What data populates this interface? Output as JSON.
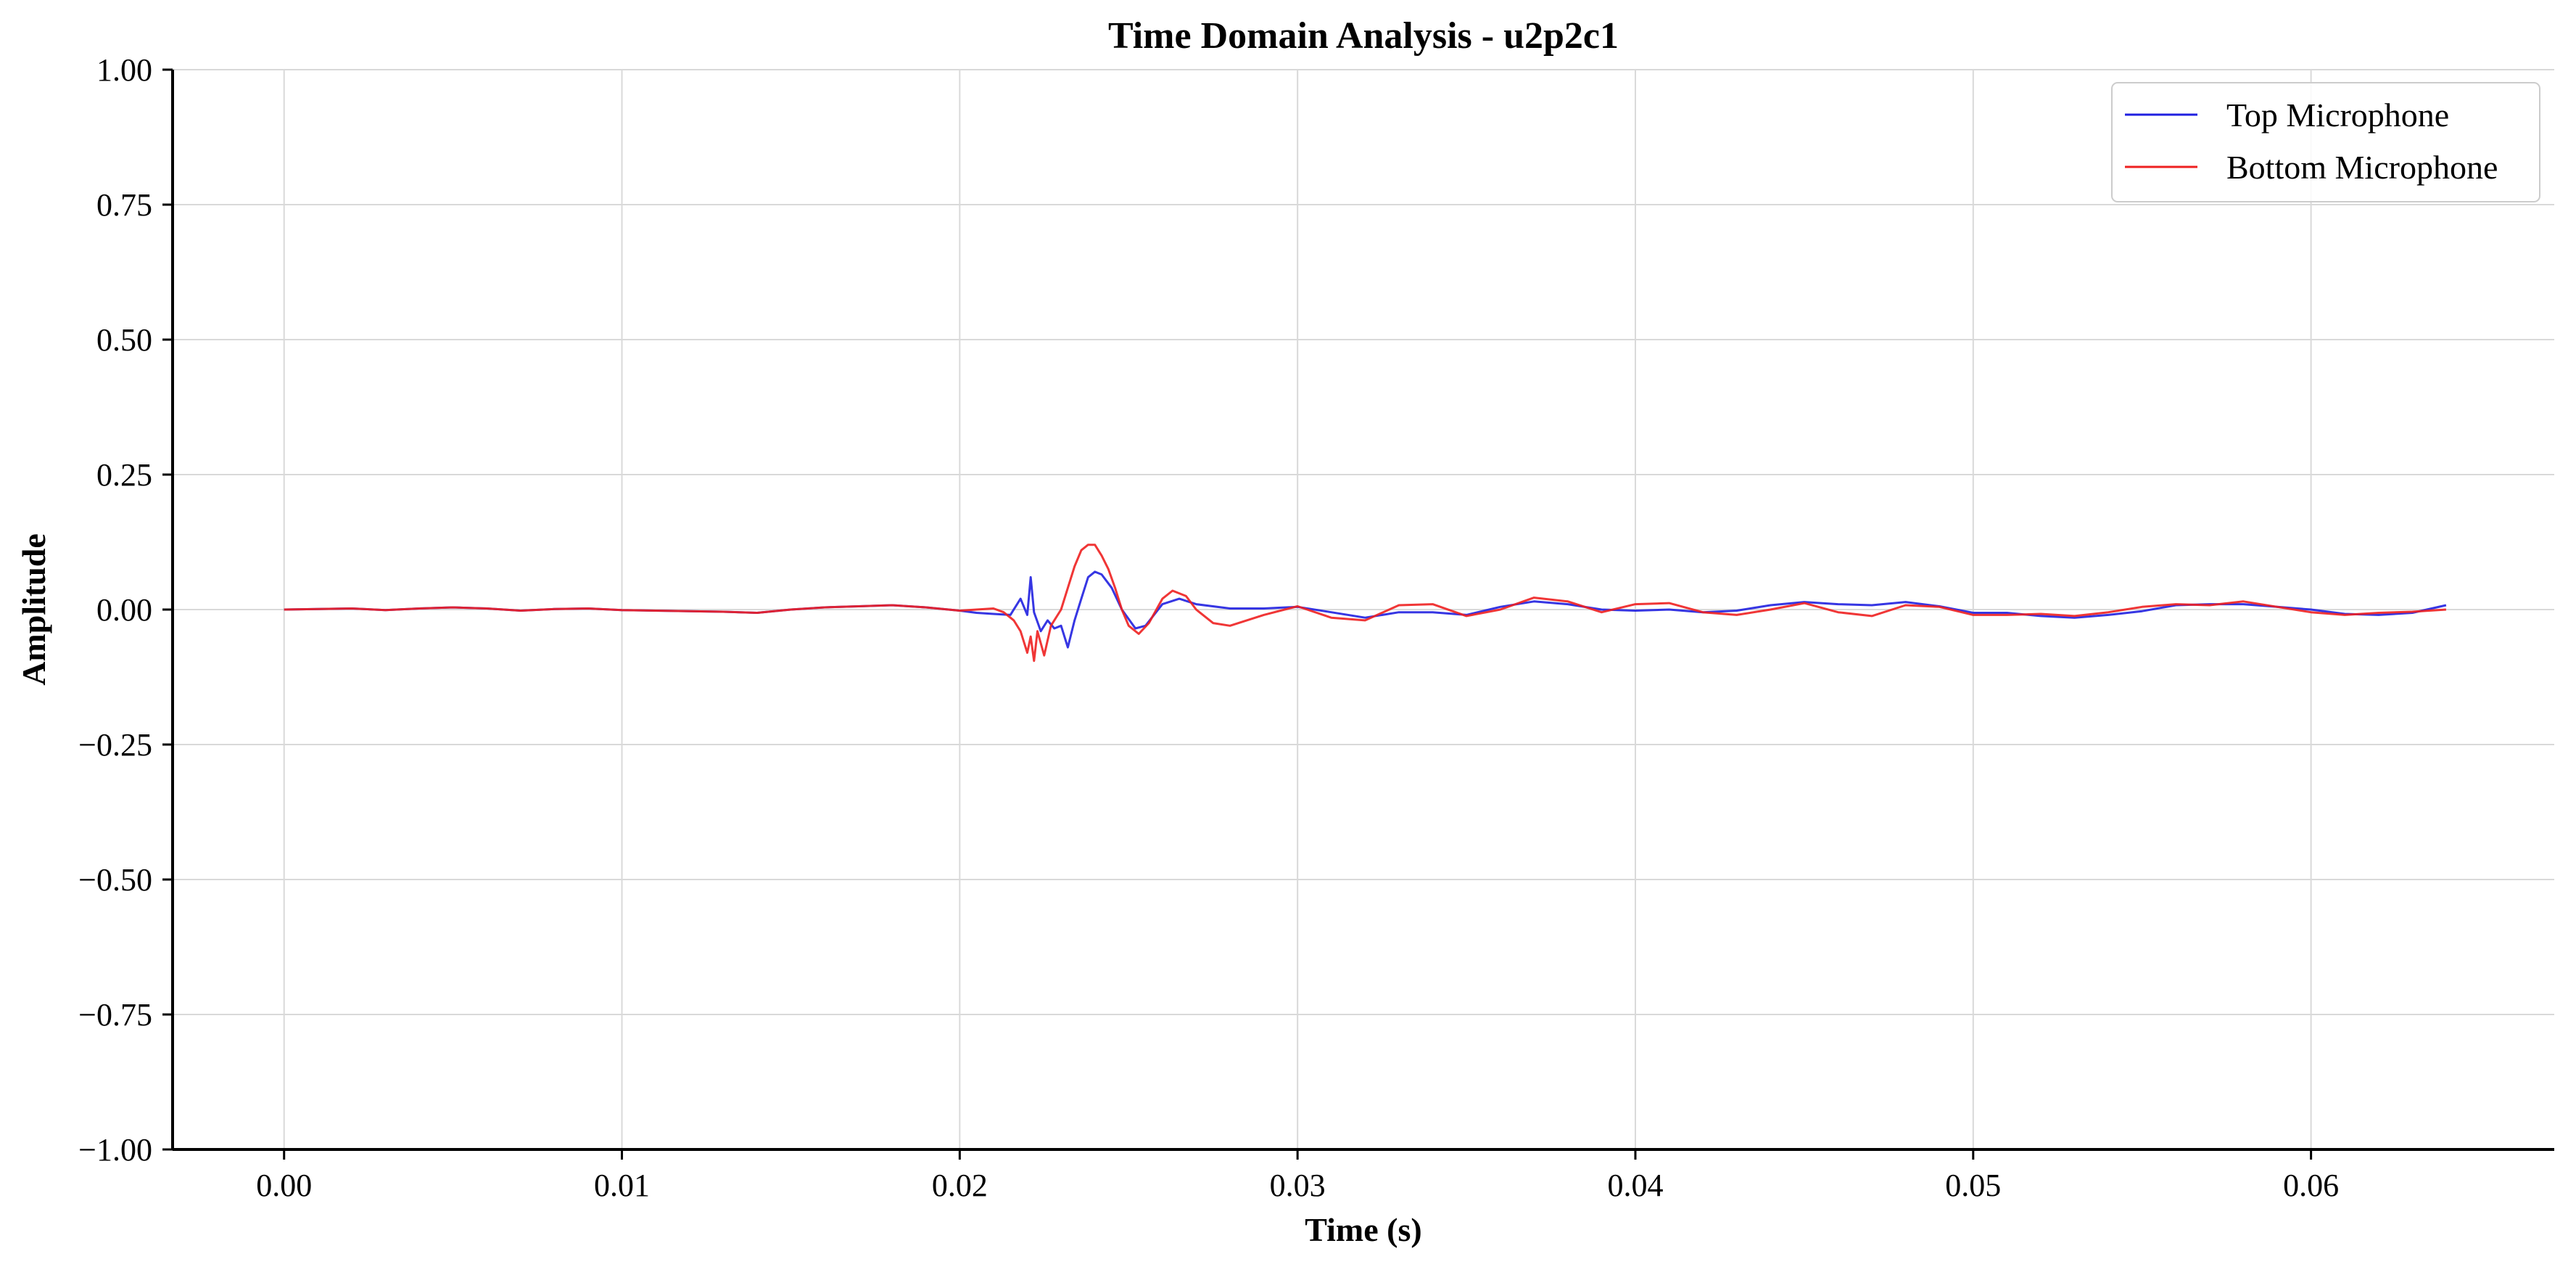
{
  "chart_data": {
    "type": "line",
    "title": "Time Domain Analysis - u2p2c1",
    "xlabel": "Time (s)",
    "ylabel": "Amplitude",
    "xlim": [
      -0.0033,
      0.0672
    ],
    "ylim": [
      -1.0,
      1.0
    ],
    "xticks": [
      0.0,
      0.01,
      0.02,
      0.03,
      0.04,
      0.05,
      0.06
    ],
    "xtick_labels": [
      "0.00",
      "0.01",
      "0.02",
      "0.03",
      "0.04",
      "0.05",
      "0.06"
    ],
    "yticks": [
      1.0,
      0.75,
      0.5,
      0.25,
      0.0,
      -0.25,
      -0.5,
      -0.75,
      -1.0
    ],
    "ytick_labels": [
      "1.00",
      "0.75",
      "0.50",
      "0.25",
      "0.00",
      "−0.25",
      "−0.50",
      "−0.75",
      "−1.00"
    ],
    "grid": true,
    "legend_position": "top-right",
    "series": [
      {
        "name": "Top Microphone",
        "color": "#2020e0",
        "points": [
          [
            0.0,
            0.0
          ],
          [
            0.001,
            0.001
          ],
          [
            0.002,
            0.002
          ],
          [
            0.003,
            -0.001
          ],
          [
            0.004,
            0.002
          ],
          [
            0.005,
            0.004
          ],
          [
            0.006,
            0.002
          ],
          [
            0.007,
            -0.002
          ],
          [
            0.008,
            0.001
          ],
          [
            0.009,
            0.002
          ],
          [
            0.01,
            -0.001
          ],
          [
            0.011,
            -0.002
          ],
          [
            0.012,
            -0.003
          ],
          [
            0.013,
            -0.004
          ],
          [
            0.014,
            -0.006
          ],
          [
            0.015,
            0.0
          ],
          [
            0.016,
            0.004
          ],
          [
            0.017,
            0.006
          ],
          [
            0.018,
            0.008
          ],
          [
            0.019,
            0.004
          ],
          [
            0.02,
            -0.002
          ],
          [
            0.0205,
            -0.006
          ],
          [
            0.021,
            -0.008
          ],
          [
            0.0215,
            -0.01
          ],
          [
            0.0218,
            0.02
          ],
          [
            0.022,
            -0.01
          ],
          [
            0.0221,
            0.06
          ],
          [
            0.0222,
            -0.005
          ],
          [
            0.0224,
            -0.04
          ],
          [
            0.0226,
            -0.02
          ],
          [
            0.0228,
            -0.035
          ],
          [
            0.023,
            -0.03
          ],
          [
            0.0232,
            -0.07
          ],
          [
            0.0234,
            -0.02
          ],
          [
            0.0236,
            0.02
          ],
          [
            0.0238,
            0.06
          ],
          [
            0.024,
            0.07
          ],
          [
            0.0242,
            0.065
          ],
          [
            0.0245,
            0.04
          ],
          [
            0.0248,
            0.0
          ],
          [
            0.0252,
            -0.035
          ],
          [
            0.0255,
            -0.03
          ],
          [
            0.026,
            0.01
          ],
          [
            0.0265,
            0.02
          ],
          [
            0.027,
            0.01
          ],
          [
            0.028,
            0.002
          ],
          [
            0.029,
            0.002
          ],
          [
            0.03,
            0.005
          ],
          [
            0.031,
            -0.005
          ],
          [
            0.032,
            -0.015
          ],
          [
            0.033,
            -0.005
          ],
          [
            0.034,
            -0.005
          ],
          [
            0.035,
            -0.01
          ],
          [
            0.036,
            0.005
          ],
          [
            0.037,
            0.015
          ],
          [
            0.038,
            0.01
          ],
          [
            0.039,
            0.0
          ],
          [
            0.04,
            -0.002
          ],
          [
            0.041,
            0.0
          ],
          [
            0.042,
            -0.005
          ],
          [
            0.043,
            -0.002
          ],
          [
            0.044,
            0.008
          ],
          [
            0.045,
            0.014
          ],
          [
            0.046,
            0.01
          ],
          [
            0.047,
            0.008
          ],
          [
            0.048,
            0.014
          ],
          [
            0.049,
            0.006
          ],
          [
            0.05,
            -0.006
          ],
          [
            0.051,
            -0.006
          ],
          [
            0.052,
            -0.012
          ],
          [
            0.053,
            -0.015
          ],
          [
            0.054,
            -0.01
          ],
          [
            0.055,
            -0.003
          ],
          [
            0.056,
            0.008
          ],
          [
            0.057,
            0.01
          ],
          [
            0.058,
            0.01
          ],
          [
            0.059,
            0.005
          ],
          [
            0.06,
            0.0
          ],
          [
            0.061,
            -0.008
          ],
          [
            0.062,
            -0.01
          ],
          [
            0.063,
            -0.006
          ],
          [
            0.064,
            0.008
          ]
        ]
      },
      {
        "name": "Bottom Microphone",
        "color": "#ee2020",
        "points": [
          [
            0.0,
            0.0
          ],
          [
            0.001,
            0.001
          ],
          [
            0.002,
            0.002
          ],
          [
            0.003,
            -0.001
          ],
          [
            0.004,
            0.002
          ],
          [
            0.005,
            0.004
          ],
          [
            0.006,
            0.002
          ],
          [
            0.007,
            -0.002
          ],
          [
            0.008,
            0.001
          ],
          [
            0.009,
            0.002
          ],
          [
            0.01,
            -0.001
          ],
          [
            0.011,
            -0.002
          ],
          [
            0.012,
            -0.003
          ],
          [
            0.013,
            -0.004
          ],
          [
            0.014,
            -0.006
          ],
          [
            0.015,
            0.0
          ],
          [
            0.016,
            0.004
          ],
          [
            0.017,
            0.006
          ],
          [
            0.018,
            0.008
          ],
          [
            0.019,
            0.004
          ],
          [
            0.02,
            -0.002
          ],
          [
            0.0205,
            0.0
          ],
          [
            0.021,
            0.002
          ],
          [
            0.0213,
            -0.005
          ],
          [
            0.0216,
            -0.02
          ],
          [
            0.0218,
            -0.04
          ],
          [
            0.022,
            -0.08
          ],
          [
            0.0221,
            -0.05
          ],
          [
            0.0222,
            -0.095
          ],
          [
            0.0223,
            -0.04
          ],
          [
            0.0225,
            -0.085
          ],
          [
            0.0227,
            -0.03
          ],
          [
            0.023,
            0.0
          ],
          [
            0.0232,
            0.04
          ],
          [
            0.0234,
            0.08
          ],
          [
            0.0236,
            0.11
          ],
          [
            0.0238,
            0.12
          ],
          [
            0.024,
            0.12
          ],
          [
            0.0242,
            0.1
          ],
          [
            0.0244,
            0.075
          ],
          [
            0.0246,
            0.04
          ],
          [
            0.0248,
            0.0
          ],
          [
            0.025,
            -0.03
          ],
          [
            0.0253,
            -0.045
          ],
          [
            0.0256,
            -0.025
          ],
          [
            0.026,
            0.02
          ],
          [
            0.0263,
            0.035
          ],
          [
            0.0267,
            0.025
          ],
          [
            0.027,
            0.0
          ],
          [
            0.0275,
            -0.025
          ],
          [
            0.028,
            -0.03
          ],
          [
            0.029,
            -0.01
          ],
          [
            0.03,
            0.006
          ],
          [
            0.031,
            -0.015
          ],
          [
            0.032,
            -0.02
          ],
          [
            0.033,
            0.008
          ],
          [
            0.034,
            0.01
          ],
          [
            0.035,
            -0.012
          ],
          [
            0.036,
            0.0
          ],
          [
            0.037,
            0.022
          ],
          [
            0.038,
            0.015
          ],
          [
            0.039,
            -0.005
          ],
          [
            0.04,
            0.01
          ],
          [
            0.041,
            0.012
          ],
          [
            0.042,
            -0.005
          ],
          [
            0.043,
            -0.01
          ],
          [
            0.044,
            0.0
          ],
          [
            0.045,
            0.012
          ],
          [
            0.046,
            -0.005
          ],
          [
            0.047,
            -0.012
          ],
          [
            0.048,
            0.008
          ],
          [
            0.049,
            0.005
          ],
          [
            0.05,
            -0.01
          ],
          [
            0.051,
            -0.01
          ],
          [
            0.052,
            -0.008
          ],
          [
            0.053,
            -0.012
          ],
          [
            0.054,
            -0.005
          ],
          [
            0.055,
            0.005
          ],
          [
            0.056,
            0.01
          ],
          [
            0.057,
            0.008
          ],
          [
            0.058,
            0.015
          ],
          [
            0.059,
            0.005
          ],
          [
            0.06,
            -0.005
          ],
          [
            0.061,
            -0.01
          ],
          [
            0.062,
            -0.006
          ],
          [
            0.063,
            -0.004
          ],
          [
            0.064,
            0.0
          ]
        ]
      }
    ]
  }
}
